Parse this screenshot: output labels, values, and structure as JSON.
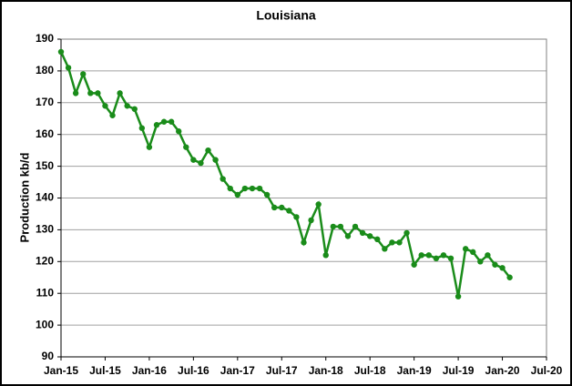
{
  "chart_data": {
    "type": "line",
    "title": "Louisiana",
    "y_label": "Production kb/d",
    "x": [
      "2015-01",
      "2015-02",
      "2015-03",
      "2015-04",
      "2015-05",
      "2015-06",
      "2015-07",
      "2015-08",
      "2015-09",
      "2015-10",
      "2015-11",
      "2015-12",
      "2016-01",
      "2016-02",
      "2016-03",
      "2016-04",
      "2016-05",
      "2016-06",
      "2016-07",
      "2016-08",
      "2016-09",
      "2016-10",
      "2016-11",
      "2016-12",
      "2017-01",
      "2017-02",
      "2017-03",
      "2017-04",
      "2017-05",
      "2017-06",
      "2017-07",
      "2017-08",
      "2017-09",
      "2017-10",
      "2017-11",
      "2017-12",
      "2018-01",
      "2018-02",
      "2018-03",
      "2018-04",
      "2018-05",
      "2018-06",
      "2018-07",
      "2018-08",
      "2018-09",
      "2018-10",
      "2018-11",
      "2018-12",
      "2019-01",
      "2019-02",
      "2019-03",
      "2019-04",
      "2019-05",
      "2019-06",
      "2019-07",
      "2019-08",
      "2019-09",
      "2019-10",
      "2019-11",
      "2019-12",
      "2020-01",
      "2020-02"
    ],
    "series": [
      {
        "name": "Louisiana",
        "color": "#1a8c1a",
        "values": [
          186,
          181,
          173,
          179,
          173,
          173,
          169,
          166,
          173,
          169,
          168,
          162,
          156,
          163,
          164,
          164,
          161,
          156,
          152,
          151,
          155,
          152,
          146,
          143,
          141,
          143,
          143,
          143,
          141,
          137,
          137,
          136,
          134,
          126,
          133,
          138,
          122,
          131,
          131,
          128,
          131,
          129,
          128,
          127,
          124,
          126,
          126,
          129,
          119,
          122,
          122,
          121,
          122,
          121,
          109,
          124,
          123,
          120,
          122,
          119,
          118,
          115
        ]
      }
    ],
    "xlim": [
      "2015-01",
      "2020-07"
    ],
    "xticks": [
      {
        "value": "2015-01",
        "label": "Jan-15"
      },
      {
        "value": "2015-07",
        "label": "Jul-15"
      },
      {
        "value": "2016-01",
        "label": "Jan-16"
      },
      {
        "value": "2016-07",
        "label": "Jul-16"
      },
      {
        "value": "2017-01",
        "label": "Jan-17"
      },
      {
        "value": "2017-07",
        "label": "Jul-17"
      },
      {
        "value": "2018-01",
        "label": "Jan-18"
      },
      {
        "value": "2018-07",
        "label": "Jul-18"
      },
      {
        "value": "2019-01",
        "label": "Jan-19"
      },
      {
        "value": "2019-07",
        "label": "Jul-19"
      },
      {
        "value": "2020-01",
        "label": "Jan-20"
      },
      {
        "value": "2020-07",
        "label": "Jul-20"
      }
    ],
    "ylim": [
      90,
      190
    ],
    "yticks": [
      90,
      100,
      110,
      120,
      130,
      140,
      150,
      160,
      170,
      180,
      190
    ],
    "grid": true
  }
}
